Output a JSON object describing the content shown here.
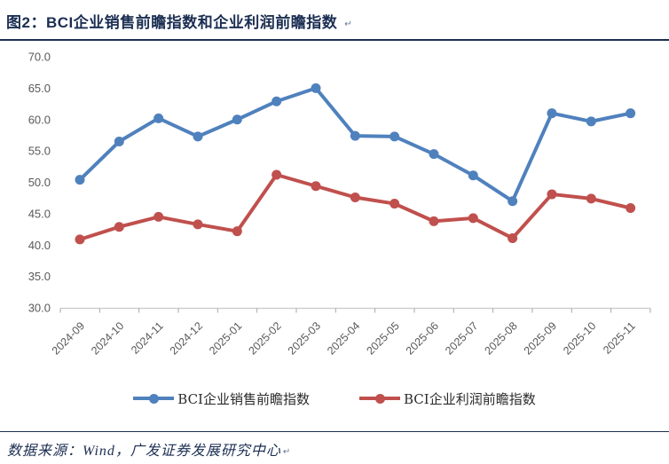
{
  "header": {
    "title": "图2：BCI企业销售前瞻指数和企业利润前瞻指数",
    "return_mark": "↵"
  },
  "footer": {
    "text": "数据来源：Wind，广发证券发展研究中心",
    "return_mark": "↵"
  },
  "colors": {
    "accent_navy": "#1B2E52",
    "axis_text_gray": "#595959",
    "axis_line_gray": "#C9C9C9",
    "tick_gray": "#A6A6A6",
    "series_blue": "#4F81BD",
    "series_red": "#C0504D"
  },
  "chart_data": {
    "type": "line",
    "title": "BCI企业销售前瞻指数和企业利润前瞻指数",
    "categories": [
      "2024-09",
      "2024-10",
      "2024-11",
      "2024-12",
      "2025-01",
      "2025-02",
      "2025-03",
      "2025-04",
      "2025-05",
      "2025-06",
      "2025-07",
      "2025-08",
      "2025-09",
      "2025-10",
      "2025-11"
    ],
    "series": [
      {
        "name": "BCI企业销售前瞻指数",
        "color": "#4F81BD",
        "values": [
          50.4,
          56.5,
          60.2,
          57.3,
          60.0,
          62.9,
          65.0,
          57.4,
          57.3,
          54.5,
          51.1,
          47.0,
          61.0,
          59.7,
          61.0
        ]
      },
      {
        "name": "BCI企业利润前瞻指数",
        "color": "#C0504D",
        "values": [
          40.9,
          42.9,
          44.5,
          43.3,
          42.2,
          51.2,
          49.4,
          47.6,
          46.6,
          43.8,
          44.3,
          41.1,
          48.1,
          47.4,
          45.9
        ]
      }
    ],
    "xlabel": "",
    "ylabel": "",
    "ylim": [
      30.0,
      70.0
    ],
    "ytick_step": 5.0,
    "ytick_format_decimals": 1,
    "grid": false,
    "legend_position": "bottom",
    "x_tick_label_rotation": 45
  }
}
